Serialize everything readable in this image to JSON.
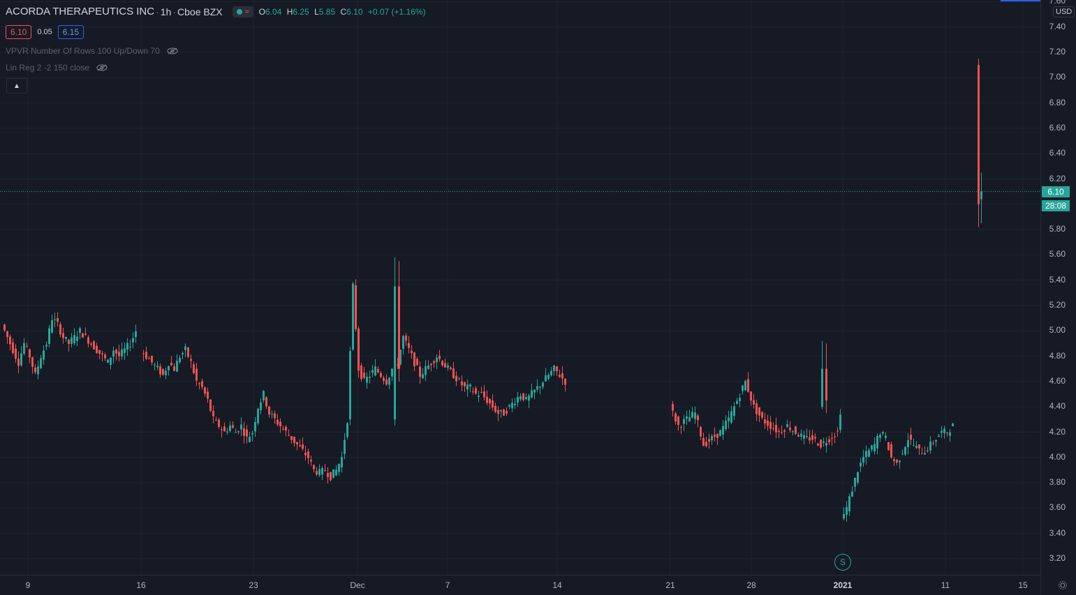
{
  "header": {
    "symbol": "ACORDA THERAPEUTICS INC",
    "interval": "1h",
    "exchange": "Cboe BZX",
    "open_label": "O",
    "open": "6.04",
    "high_label": "H",
    "high": "6.25",
    "low_label": "L",
    "low": "5.85",
    "close_label": "C",
    "close": "6.10",
    "change": "+0.07 (+1.16%)"
  },
  "quote": {
    "bid": "6.10",
    "spread": "0.05",
    "ask": "6.15"
  },
  "indicators": [
    {
      "label": "VPVR Number Of Rows 100 Up/Down 70",
      "icon": "eye-hidden-icon"
    },
    {
      "label": "Lin Reg 2 -2 150 close",
      "icon": "eye-hidden-icon"
    }
  ],
  "price_axis": {
    "currency": "USD",
    "ticks": [
      "7.60",
      "7.40",
      "7.20",
      "7.00",
      "6.80",
      "6.60",
      "6.40",
      "6.20",
      "6.00",
      "5.80",
      "5.60",
      "5.40",
      "5.20",
      "5.00",
      "4.80",
      "4.60",
      "4.40",
      "4.20",
      "4.00",
      "3.80",
      "3.60",
      "3.40",
      "3.20"
    ],
    "last_price": "6.10",
    "countdown": "28:08"
  },
  "time_axis": {
    "ticks": [
      "9",
      "16",
      "23",
      "Dec",
      "7",
      "14",
      "21",
      "28",
      "2021",
      "11",
      "15"
    ]
  },
  "split_marker": "S",
  "colors": {
    "up": "#26a69a",
    "down": "#ef5350",
    "background": "#161a25"
  },
  "chart_data": {
    "type": "candlestick",
    "ylim": [
      3.1,
      7.6
    ],
    "segments": [
      {
        "path": [
          5.05,
          4.95,
          4.85,
          4.75,
          4.9,
          4.8,
          4.65,
          4.8,
          4.9,
          5.1,
          5.05,
          4.95,
          4.9,
          4.95,
          5.0,
          4.95,
          4.9,
          4.85,
          4.8,
          4.75,
          4.85,
          4.8,
          4.85,
          4.9,
          5.0
        ]
      },
      {
        "path": [
          4.85,
          4.8,
          4.75,
          4.7,
          4.65,
          4.75,
          4.7,
          4.8,
          4.85,
          4.75,
          4.6,
          4.55,
          4.45,
          4.3,
          4.25,
          4.2,
          4.25,
          4.2,
          4.25,
          4.15,
          4.2,
          4.4,
          4.5,
          4.35,
          4.3,
          4.25,
          4.2,
          4.15,
          4.1,
          4.05,
          4.0,
          3.9,
          3.88,
          3.9,
          3.85,
          3.9,
          4.0,
          4.3,
          5.35,
          4.7,
          4.6,
          4.65,
          4.7,
          4.65,
          4.6,
          4.7,
          4.75,
          4.95,
          4.85,
          4.75,
          4.65,
          4.7,
          4.75,
          4.8,
          4.75,
          4.7,
          4.65,
          4.6,
          4.55,
          4.55,
          4.5,
          4.5,
          4.45,
          4.4,
          4.35,
          4.35,
          4.4,
          4.45,
          4.5,
          4.45,
          4.5,
          4.55,
          4.6,
          4.65,
          4.7,
          4.65,
          4.6
        ]
      },
      {
        "path": [
          4.4,
          4.25,
          4.3,
          4.35,
          4.1,
          4.15,
          4.2,
          4.3,
          4.45,
          4.6,
          4.4,
          4.3,
          4.25,
          4.2,
          4.25,
          4.2,
          4.15,
          4.15,
          4.1,
          4.15,
          4.2,
          4.7,
          4.45,
          4.25,
          4.15
        ]
      },
      {
        "path": [
          3.5,
          3.6,
          3.75,
          3.9,
          4.0,
          4.05,
          4.1,
          4.2,
          4.15,
          4.0,
          3.95,
          4.05,
          4.15,
          4.1,
          4.05,
          4.05,
          4.1,
          4.15,
          4.2,
          4.2,
          4.25
        ]
      },
      {
        "path": [
          6.0,
          6.1
        ]
      }
    ]
  }
}
